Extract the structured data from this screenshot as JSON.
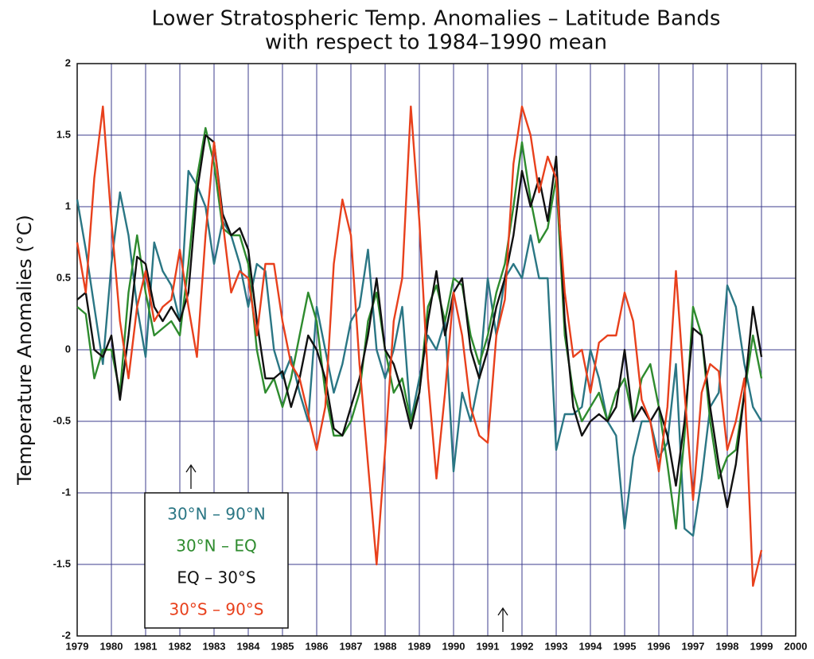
{
  "chart_data": {
    "type": "line",
    "title": "Lower Stratospheric Temp. Anomalies – Latitude Bands",
    "subtitle": "with respect to 1984–1990 mean",
    "y_label": "Temperature Anomalies (°C)",
    "x": [
      1979,
      1979.25,
      1979.5,
      1979.75,
      1980,
      1980.25,
      1980.5,
      1980.75,
      1981,
      1981.25,
      1981.5,
      1981.75,
      1982,
      1982.25,
      1982.5,
      1982.75,
      1983,
      1983.25,
      1983.5,
      1983.75,
      1984,
      1984.25,
      1984.5,
      1984.75,
      1985,
      1985.25,
      1985.5,
      1985.75,
      1986,
      1986.25,
      1986.5,
      1986.75,
      1987,
      1987.25,
      1987.5,
      1987.75,
      1988,
      1988.25,
      1988.5,
      1988.75,
      1989,
      1989.25,
      1989.5,
      1989.75,
      1990,
      1990.25,
      1990.5,
      1990.75,
      1991,
      1991.25,
      1991.5,
      1991.75,
      1992,
      1992.25,
      1992.5,
      1992.75,
      1993,
      1993.25,
      1993.5,
      1993.75,
      1994,
      1994.25,
      1994.5,
      1994.75,
      1995,
      1995.25,
      1995.5,
      1995.75,
      1996,
      1996.25,
      1996.5,
      1996.75,
      1997,
      1997.25,
      1997.5,
      1997.75,
      1998,
      1998.25,
      1998.5,
      1998.75,
      1999
    ],
    "series": [
      {
        "name": "30°N – 90°N",
        "color": "#2a7684",
        "values": [
          1.05,
          0.7,
          0.3,
          -0.1,
          0.6,
          1.1,
          0.8,
          0.3,
          -0.05,
          0.75,
          0.55,
          0.45,
          0.2,
          1.25,
          1.15,
          1.0,
          0.6,
          0.9,
          0.8,
          0.6,
          0.3,
          0.6,
          0.55,
          0,
          -0.2,
          -0.05,
          -0.3,
          -0.5,
          0.3,
          0,
          -0.3,
          -0.1,
          0.2,
          0.3,
          0.7,
          0,
          -0.2,
          0,
          0.3,
          -0.5,
          -0.2,
          0.1,
          0,
          0.2,
          -0.85,
          -0.3,
          -0.5,
          -0.2,
          0.5,
          0.1,
          0.5,
          0.6,
          0.5,
          0.8,
          0.5,
          0.5,
          -0.7,
          -0.45,
          -0.45,
          -0.4,
          0,
          -0.2,
          -0.5,
          -0.6,
          -1.25,
          -0.75,
          -0.5,
          -0.5,
          -0.75,
          -0.65,
          -0.1,
          -1.25,
          -1.3,
          -0.9,
          -0.4,
          -0.3,
          0.45,
          0.3,
          -0.1,
          -0.4,
          -0.5
        ]
      },
      {
        "name": "30°N – EQ",
        "color": "#2e8b2e",
        "values": [
          0.3,
          0.25,
          -0.2,
          0,
          0,
          -0.3,
          0.4,
          0.8,
          0.4,
          0.1,
          0.15,
          0.2,
          0.1,
          0.6,
          1.2,
          1.55,
          1.3,
          0.85,
          0.8,
          0.8,
          0.6,
          0,
          -0.3,
          -0.2,
          -0.4,
          -0.2,
          0.1,
          0.4,
          0.2,
          -0.3,
          -0.6,
          -0.6,
          -0.5,
          -0.3,
          0.2,
          0.4,
          0,
          -0.3,
          -0.2,
          -0.5,
          -0.3,
          0.3,
          0.45,
          0.2,
          0.5,
          0.45,
          0.1,
          -0.1,
          0.1,
          0.4,
          0.6,
          1.0,
          1.45,
          1.05,
          0.75,
          0.85,
          1.2,
          0.1,
          -0.3,
          -0.5,
          -0.4,
          -0.3,
          -0.5,
          -0.3,
          -0.2,
          -0.5,
          -0.2,
          -0.1,
          -0.4,
          -0.8,
          -1.25,
          -0.6,
          0.3,
          0.1,
          -0.5,
          -0.9,
          -0.75,
          -0.7,
          -0.3,
          0.1,
          -0.2
        ]
      },
      {
        "name": "EQ – 30°S",
        "color": "#111111",
        "values": [
          0.35,
          0.4,
          0,
          -0.05,
          0.1,
          -0.35,
          0.1,
          0.65,
          0.6,
          0.3,
          0.2,
          0.3,
          0.2,
          0.4,
          1.1,
          1.5,
          1.45,
          0.95,
          0.8,
          0.85,
          0.7,
          0.2,
          -0.2,
          -0.2,
          -0.15,
          -0.4,
          -0.2,
          0.1,
          0,
          -0.2,
          -0.55,
          -0.6,
          -0.4,
          -0.2,
          0.1,
          0.5,
          0,
          -0.1,
          -0.3,
          -0.55,
          -0.3,
          0.2,
          0.55,
          0.1,
          0.4,
          0.5,
          0,
          -0.2,
          0,
          0.3,
          0.5,
          0.8,
          1.25,
          1.0,
          1.2,
          0.9,
          1.35,
          0.2,
          -0.4,
          -0.6,
          -0.5,
          -0.45,
          -0.5,
          -0.4,
          0,
          -0.5,
          -0.4,
          -0.5,
          -0.4,
          -0.6,
          -0.95,
          -0.5,
          0.15,
          0.1,
          -0.4,
          -0.8,
          -1.1,
          -0.8,
          -0.3,
          0.3,
          -0.05
        ]
      },
      {
        "name": "30°S – 90°S",
        "color": "#e8401c",
        "values": [
          0.75,
          0.4,
          1.2,
          1.7,
          0.9,
          0.2,
          -0.2,
          0.3,
          0.55,
          0.2,
          0.3,
          0.35,
          0.7,
          0.3,
          -0.05,
          0.8,
          1.45,
          0.9,
          0.4,
          0.55,
          0.5,
          0.1,
          0.6,
          0.6,
          0.2,
          -0.1,
          -0.2,
          -0.45,
          -0.7,
          -0.4,
          0.6,
          1.05,
          0.8,
          -0.1,
          -0.8,
          -1.5,
          -0.7,
          0.2,
          0.5,
          1.7,
          0.9,
          -0.2,
          -0.9,
          -0.3,
          0.4,
          0.1,
          -0.4,
          -0.6,
          -0.65,
          0.1,
          0.35,
          1.3,
          1.7,
          1.5,
          1.1,
          1.35,
          1.2,
          0.4,
          -0.05,
          0,
          -0.3,
          0.05,
          0.1,
          0.1,
          0.4,
          0.2,
          -0.35,
          -0.5,
          -0.85,
          -0.4,
          0.55,
          -0.3,
          -1.05,
          -0.3,
          -0.1,
          -0.15,
          -0.7,
          -0.5,
          -0.2,
          -1.65,
          -1.4
        ]
      }
    ],
    "xlim": [
      1979,
      2000
    ],
    "xticks": [
      1979,
      1980,
      1981,
      1982,
      1983,
      1984,
      1985,
      1986,
      1987,
      1988,
      1989,
      1990,
      1991,
      1992,
      1993,
      1994,
      1995,
      1996,
      1997,
      1998,
      1999,
      2000
    ],
    "ylim": [
      -2,
      2
    ],
    "yticks": [
      -2,
      -1.5,
      -1,
      -0.5,
      0,
      0.5,
      1,
      1.5,
      2
    ],
    "grid": true
  }
}
